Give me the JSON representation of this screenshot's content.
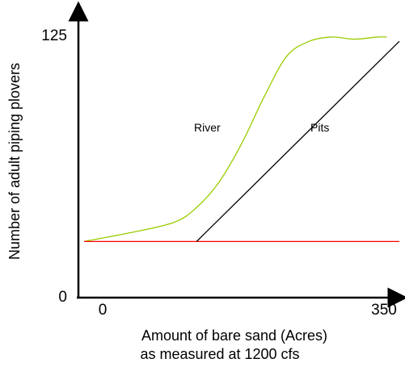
{
  "chart_data": {
    "type": "line",
    "xlabel_lines": [
      "Amount of bare sand (Acres)",
      "as measured at 1200 cfs"
    ],
    "ylabel": "Number of adult piping plovers",
    "xlim": [
      0,
      350
    ],
    "ylim": [
      0,
      125
    ],
    "x_ticks": [
      {
        "value": 0,
        "label": "0"
      },
      {
        "value": 350,
        "label": "350"
      }
    ],
    "y_ticks": [
      {
        "value": 0,
        "label": "0"
      },
      {
        "value": 125,
        "label": "125"
      }
    ],
    "grid": false,
    "legend": "none",
    "series": [
      {
        "name": "River",
        "color": "#99cc00",
        "x": [
          0,
          50,
          100,
          125,
          150,
          175,
          200,
          225,
          250,
          275,
          300,
          325,
          336
        ],
        "y": [
          26,
          30,
          35,
          42,
          54,
          72,
          94,
          113,
          120,
          122,
          121,
          122,
          122
        ]
      },
      {
        "name": "Pits",
        "color": "#000000",
        "x": [
          125,
          350
        ],
        "y": [
          26,
          120
        ]
      },
      {
        "name": "",
        "color": "#ff0000",
        "x": [
          0,
          350
        ],
        "y": [
          26,
          26
        ]
      }
    ],
    "annotations": [
      {
        "text": "River",
        "x": 145,
        "y": 73
      },
      {
        "text": "Pits",
        "x": 282,
        "y": 73
      }
    ]
  }
}
